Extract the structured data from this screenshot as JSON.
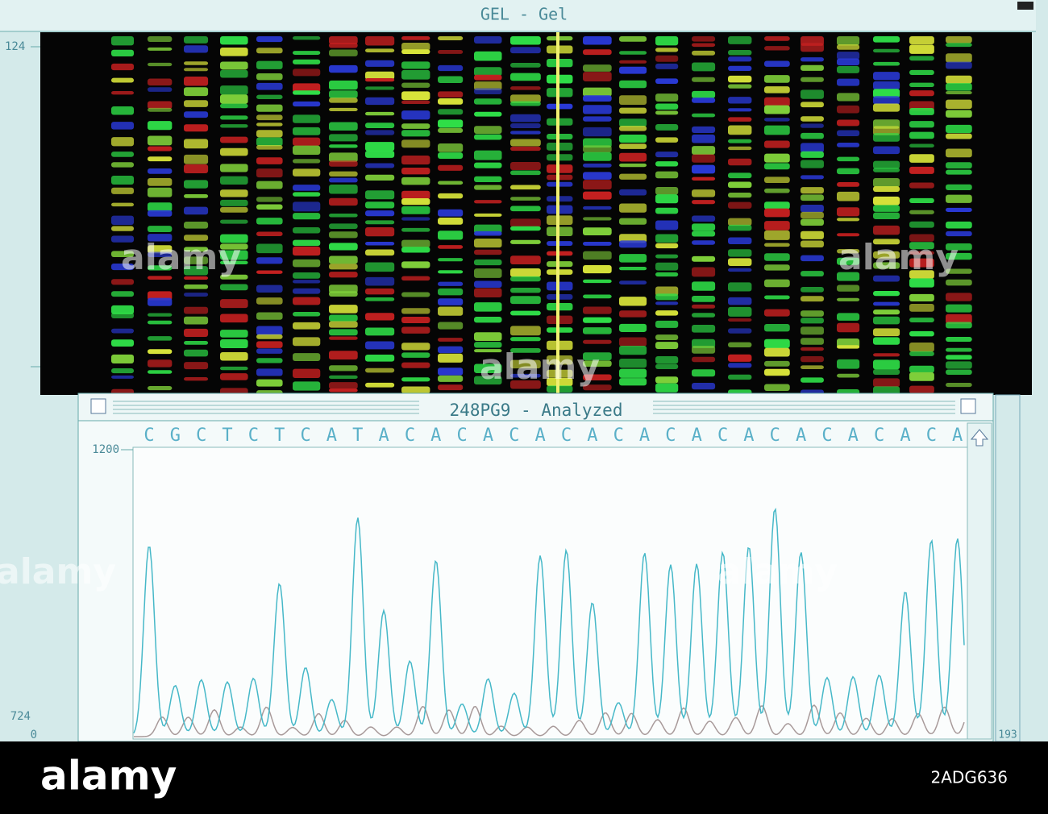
{
  "gel_window": {
    "title": "GEL - Gel",
    "ruler_top": "124"
  },
  "analyzed_window": {
    "title": "248PG9 - Analyzed",
    "bases": [
      "C",
      "G",
      "C",
      "T",
      "C",
      "T",
      "C",
      "A",
      "T",
      "A",
      "C",
      "A",
      "C",
      "A",
      "C",
      "A",
      "C",
      "A",
      "C",
      "A",
      "C",
      "A",
      "C",
      "A",
      "C",
      "A",
      "C",
      "A",
      "C",
      "A",
      "C",
      "A"
    ],
    "axis_top": "1200",
    "axis_bottom": "724",
    "origin": "0",
    "scan_end": "193"
  },
  "watermark": "alamy",
  "footer": {
    "logo": "alamy",
    "image_id": "2ADG636"
  }
}
